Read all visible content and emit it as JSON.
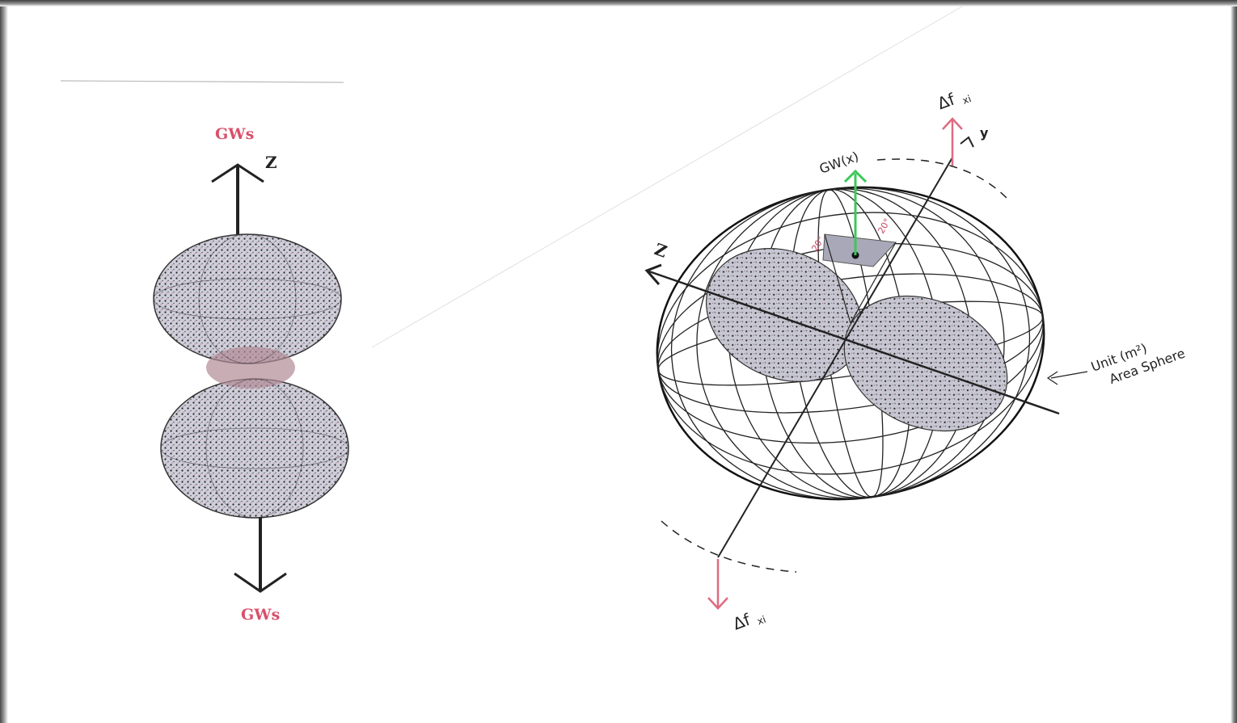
{
  "left_diagram": {
    "top_label": "GWs",
    "bottom_label": "GWs",
    "axis_label": "Z"
  },
  "right_diagram": {
    "axis_z_label": "Z",
    "axis_y_label": "y",
    "gw_arrow_label": "GW(x)",
    "delta_top": {
      "main": "Δf",
      "sub": "xi"
    },
    "delta_bottom": {
      "main": "Δf",
      "sub": "xi"
    },
    "angle_left": "20°",
    "angle_right": "20°",
    "sphere_label_line1": "Unit (m²)",
    "sphere_label_line2": "Area Sphere"
  },
  "colors": {
    "gw_label": "#d8506a",
    "gw_arrow_green": "#3cc85a",
    "delta_arrow": "#e06a80",
    "lobe_fill": "#c9c9d6"
  }
}
